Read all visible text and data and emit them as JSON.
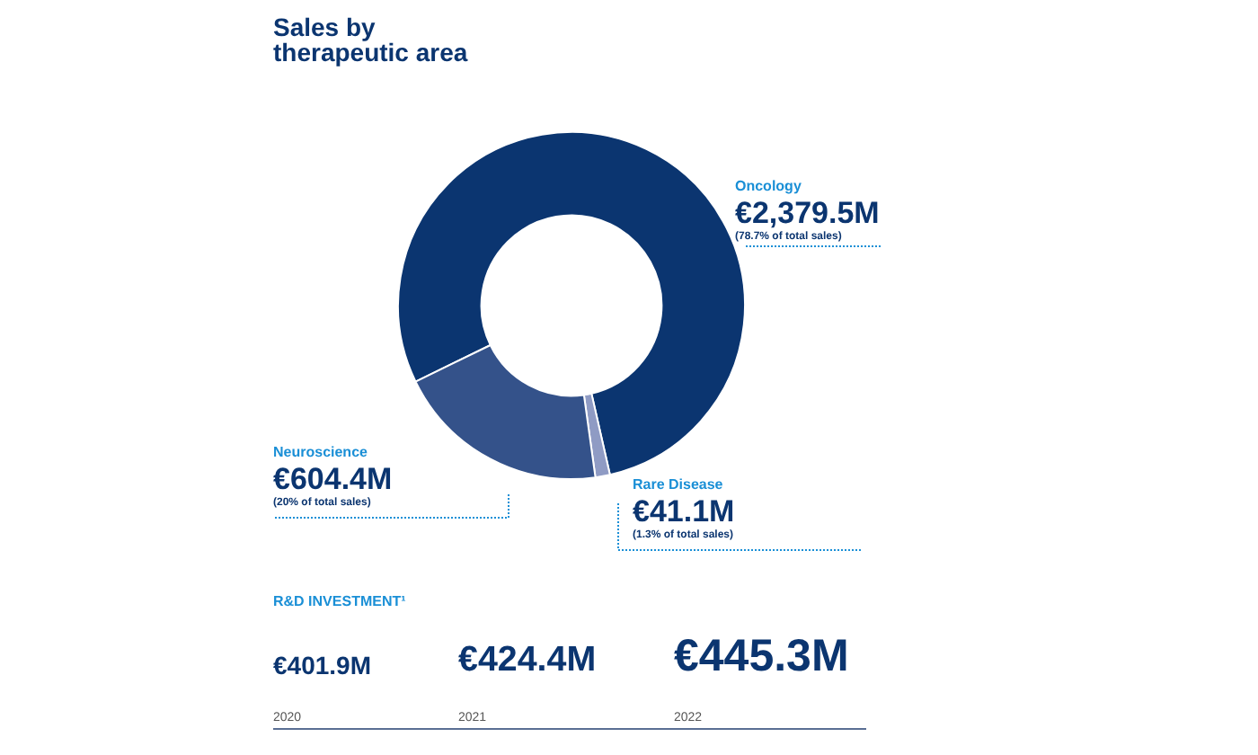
{
  "chart_data": [
    {
      "type": "donut",
      "title": "Sales by therapeutic area",
      "categories": [
        "Oncology",
        "Rare Disease",
        "Neuroscience"
      ],
      "values": [
        2379.5,
        41.1,
        604.4
      ],
      "colors": [
        "#0b3570",
        "#8f9bc4",
        "#34528a"
      ],
      "value_labels": [
        "€2,379.5M",
        "€41.1M",
        "€604.4M"
      ],
      "annotations": [
        "(78.7% of total sales)",
        "(1.3% of total sales)",
        "(20% of total sales)"
      ],
      "legend": false
    },
    {
      "type": "other",
      "title": "R&D INVESTMENT¹",
      "categories": [
        "2020",
        "2021",
        "2022"
      ],
      "values": [
        401.9,
        424.4,
        445.3
      ],
      "value_labels": [
        "€401.9M",
        "€424.4M",
        "€445.3M"
      ]
    }
  ]
}
